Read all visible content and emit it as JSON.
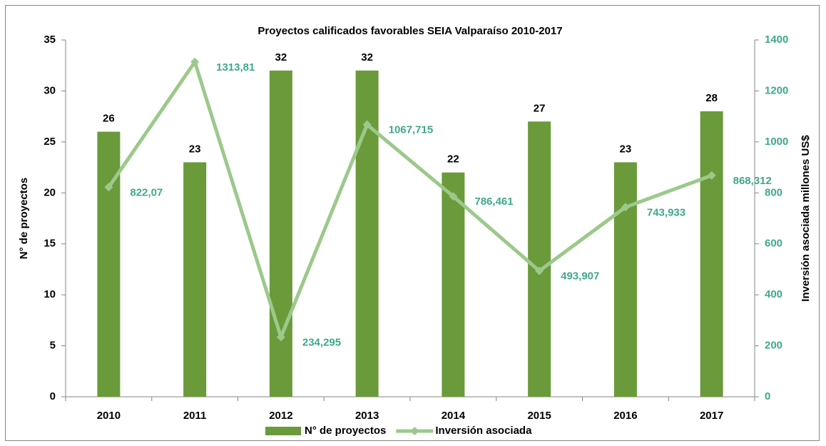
{
  "chart_data": {
    "type": "bar",
    "title": "Proyectos calificados favorables SEIA Valparaíso 2010-2017",
    "categories": [
      "2010",
      "2011",
      "2012",
      "2013",
      "2014",
      "2015",
      "2016",
      "2017"
    ],
    "ylabel": "N° de proyectos",
    "y2label": "Inversión asociada millones US$",
    "ylim": [
      0,
      35
    ],
    "yticks": [
      0,
      5,
      10,
      15,
      20,
      25,
      30,
      35
    ],
    "y2lim": [
      0,
      1400
    ],
    "y2ticks": [
      0,
      200,
      400,
      600,
      800,
      1000,
      1200,
      1400
    ],
    "y2tick_color": "#3fa88c",
    "legend": "bottom",
    "series": [
      {
        "name": "N° de proyectos",
        "type": "bar",
        "color": "#6a9a3a",
        "values": [
          26,
          23,
          32,
          32,
          22,
          27,
          23,
          28
        ]
      },
      {
        "name": "Inversión asociada",
        "type": "line",
        "axis": "y2",
        "color": "#9cc98b",
        "label_color": "#3fa88c",
        "values": [
          822.07,
          1313.81,
          234.295,
          1067.715,
          786.461,
          493.907,
          743.933,
          868.312
        ],
        "value_labels": [
          "822,07",
          "1313,81",
          "234,295",
          "1067,715",
          "786,461",
          "493,907",
          "743,933",
          "868,312"
        ]
      }
    ]
  }
}
